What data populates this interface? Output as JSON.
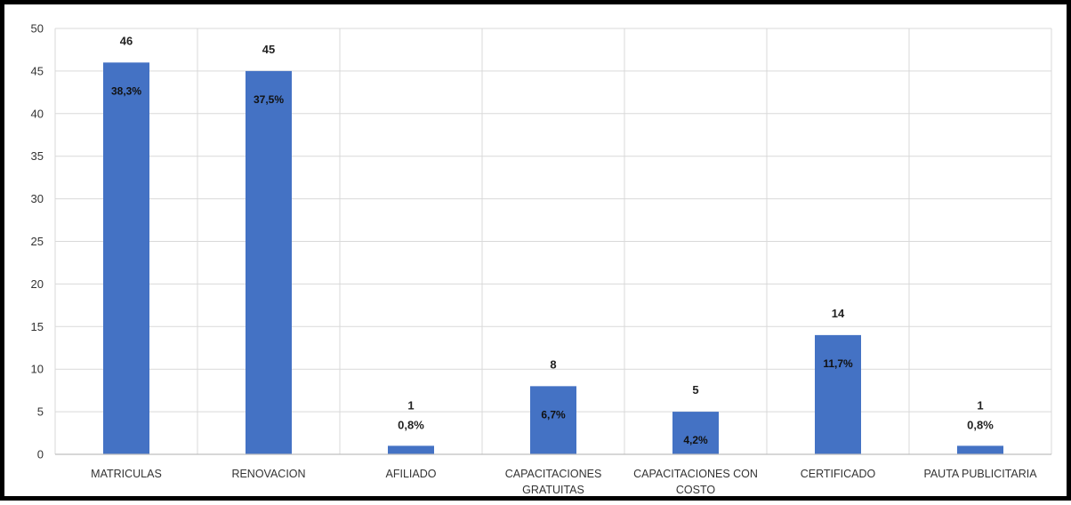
{
  "chart_data": {
    "type": "bar",
    "categories": [
      [
        "MATRICULAS"
      ],
      [
        "RENOVACION"
      ],
      [
        "AFILIADO"
      ],
      [
        "CAPACITACIONES",
        "GRATUITAS"
      ],
      [
        "CAPACITACIONES CON",
        "COSTO"
      ],
      [
        "CERTIFICADO"
      ],
      [
        "PAUTA PUBLICITARIA"
      ]
    ],
    "values": [
      46,
      45,
      1,
      8,
      5,
      14,
      1
    ],
    "percent_labels": [
      "38,3%",
      "37,5%",
      "0,8%",
      "6,7%",
      "4,2%",
      "11,7%",
      "0,8%"
    ],
    "ylim": [
      0,
      50
    ],
    "yticks": [
      0,
      5,
      10,
      15,
      20,
      25,
      30,
      35,
      40,
      45,
      50
    ],
    "grid": true,
    "bar_color": "#4472C4",
    "grid_color": "#D9D9D9",
    "axis_color": "#BFBFBF"
  }
}
